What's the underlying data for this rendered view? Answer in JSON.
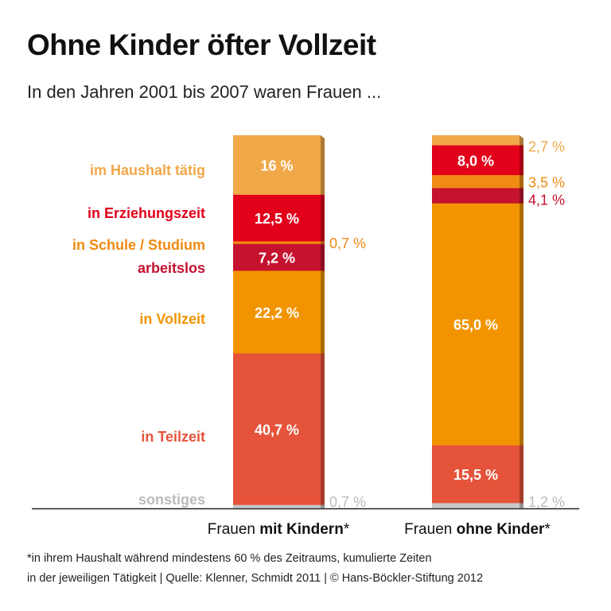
{
  "title": "Ohne Kinder öfter Vollzeit",
  "subtitle": "In den Jahren 2001 bis 2007 waren Frauen ...",
  "chart_data": {
    "type": "bar",
    "stacked": true,
    "categories": [
      {
        "prefix": "Frauen ",
        "bold": "mit Kindern",
        "suffix": "*"
      },
      {
        "prefix": "Frauen ",
        "bold": "ohne Kinder",
        "suffix": "*"
      }
    ],
    "series": [
      {
        "name": "im Haushalt tätig",
        "color": "#f0a848",
        "values": [
          16,
          2.7
        ],
        "labels": [
          "16 %",
          "2,7 %"
        ]
      },
      {
        "name": "in Erziehungszeit",
        "color": "#e2001a",
        "values": [
          12.5,
          8.0
        ],
        "labels": [
          "12,5 %",
          "8,0 %"
        ]
      },
      {
        "name": "in Schule / Studium",
        "color": "#ef8a12",
        "values": [
          0.7,
          3.5
        ],
        "labels": [
          "0,7 %",
          "3,5 %"
        ]
      },
      {
        "name": "arbeitslos",
        "color": "#c4122f",
        "values": [
          7.2,
          4.1
        ],
        "labels": [
          "7,2 %",
          "4,1 %"
        ]
      },
      {
        "name": "in Vollzeit",
        "color": "#f29400",
        "values": [
          22.2,
          65.0
        ],
        "labels": [
          "22,2 %",
          "65,0 %"
        ]
      },
      {
        "name": "in Teilzeit",
        "color": "#e5533a",
        "values": [
          40.7,
          15.5
        ],
        "labels": [
          "40,7 %",
          "15,5 %"
        ]
      },
      {
        "name": "sonstiges",
        "color": "#c8c8c8",
        "values": [
          0.7,
          1.2
        ],
        "labels": [
          "0,7 %",
          "1,2 %"
        ]
      }
    ],
    "ylim": [
      0,
      100
    ]
  },
  "footnote": {
    "line1": "*in ihrem Haushalt während mindestens 60 % des Zeitraums, kumulierte Zeiten",
    "line2": "in der jeweiligen Tätigkeit | Quelle: Klenner, Schmidt 2011 | © Hans-Böckler-Stiftung 2012"
  }
}
